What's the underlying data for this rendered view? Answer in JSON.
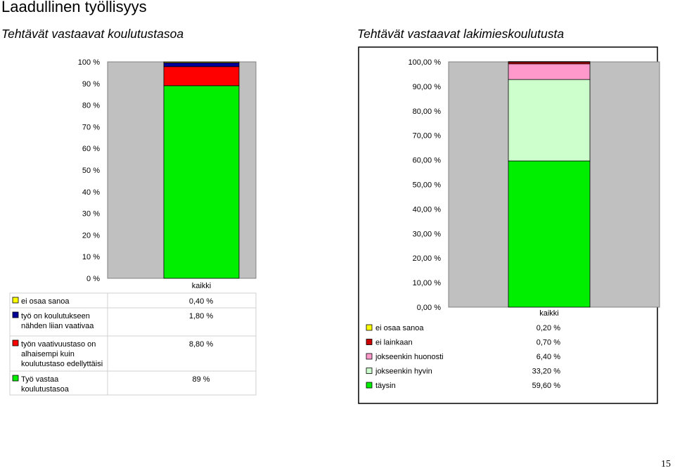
{
  "header": {
    "title": "Laadullinen työllisyys",
    "left_subtitle": "Tehtävät vastaavat koulutustasoa",
    "right_subtitle": "Tehtävät vastaavat lakimieskoulutusta"
  },
  "page_number": "15",
  "colors": {
    "plot_bg": "#c0c0c0",
    "yellow": "#ffff00",
    "blue": "#000099",
    "red": "#ff0000",
    "green": "#00ee00",
    "pink": "#ff99cc",
    "lightgreen": "#ccffcc",
    "darkred": "#cc0000"
  },
  "chart_data": [
    {
      "type": "bar",
      "stacked": true,
      "title": "Tehtävät vastaavat koulutustasoa",
      "categories": [
        "kaikki"
      ],
      "ylim": [
        0,
        100
      ],
      "y_ticks": [
        "0 %",
        "10 %",
        "20 %",
        "30 %",
        "40 %",
        "50 %",
        "60 %",
        "70 %",
        "80 %",
        "90 %",
        "100 %"
      ],
      "grid": false,
      "legend_position": "bottom data table",
      "series": [
        {
          "name": "Työ vastaa koulutustasoa",
          "values": [
            89
          ],
          "label": "89 %",
          "color": "#00ee00"
        },
        {
          "name": "työn vaativuustaso on alhaisempi kuin koulutustaso edellyttäisi",
          "values": [
            8.8
          ],
          "label": "8,80 %",
          "color": "#ff0000"
        },
        {
          "name": "työ on koulutukseen nähden liian vaativaa",
          "values": [
            1.8
          ],
          "label": "1,80 %",
          "color": "#000099"
        },
        {
          "name": "ei osaa sanoa",
          "values": [
            0.4
          ],
          "label": "0,40 %",
          "color": "#ffff00"
        }
      ]
    },
    {
      "type": "bar",
      "stacked": true,
      "title": "Tehtävät vastaavat lakimieskoulutusta",
      "categories": [
        "kaikki"
      ],
      "ylim": [
        0,
        100
      ],
      "y_ticks": [
        "0,00 %",
        "10,00 %",
        "20,00 %",
        "30,00 %",
        "40,00 %",
        "50,00 %",
        "60,00 %",
        "70,00 %",
        "80,00 %",
        "90,00 %",
        "100,00 %"
      ],
      "grid": false,
      "legend_position": "bottom",
      "series": [
        {
          "name": "täysin",
          "values": [
            59.6
          ],
          "label": "59,60 %",
          "color": "#00ee00"
        },
        {
          "name": "jokseenkin hyvin",
          "values": [
            33.2
          ],
          "label": "33,20 %",
          "color": "#ccffcc"
        },
        {
          "name": "jokseenkin huonosti",
          "values": [
            6.4
          ],
          "label": "6,40 %",
          "color": "#ff99cc"
        },
        {
          "name": "ei lainkaan",
          "values": [
            0.7
          ],
          "label": "0,70 %",
          "color": "#cc0000"
        },
        {
          "name": "ei osaa sanoa",
          "values": [
            0.2
          ],
          "label": "0,20 %",
          "color": "#ffff00"
        }
      ]
    }
  ]
}
